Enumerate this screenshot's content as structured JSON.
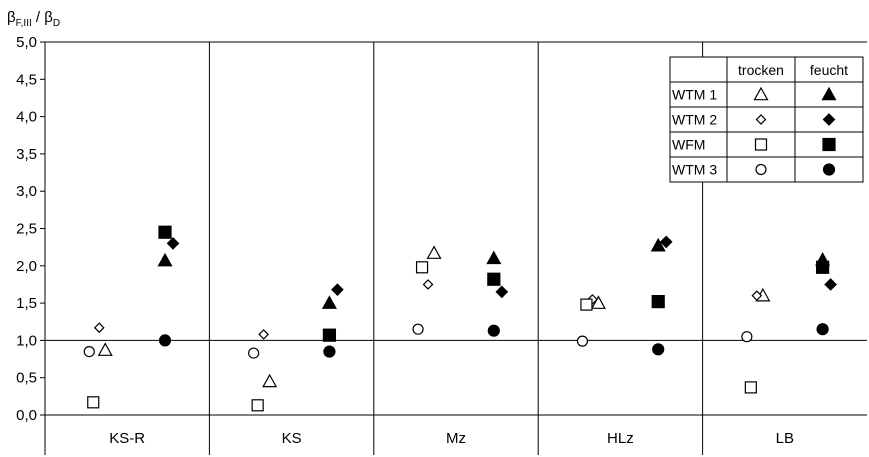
{
  "chart_data": {
    "type": "scatter",
    "ylabel": "βF,III / βD",
    "ylabel_main": "β",
    "ylabel_sub1": "F,III",
    "ylabel_sep": " / β",
    "ylabel_sub2": "D",
    "ylim": [
      0,
      5
    ],
    "yticks": [
      0,
      0.5,
      1,
      1.5,
      2,
      2.5,
      3,
      3.5,
      4,
      4.5,
      5
    ],
    "ytick_labels": [
      "0,0",
      "0,5",
      "1,0",
      "1,5",
      "2,0",
      "2,5",
      "3,0",
      "3,5",
      "4,0",
      "4,5",
      "5,0"
    ],
    "reference_line": 1.0,
    "categories": [
      "KS-R",
      "KS",
      "Mz",
      "HLz",
      "LB"
    ],
    "conditions": [
      "trocken",
      "feucht"
    ],
    "series": [
      {
        "name": "WTM 1",
        "marker": "triangle",
        "trocken": [
          0.87,
          0.45,
          2.17,
          1.5,
          1.6
        ],
        "feucht": [
          2.07,
          1.5,
          2.1,
          2.27,
          2.08
        ]
      },
      {
        "name": "WTM 2",
        "marker": "diamond",
        "trocken": [
          1.17,
          1.08,
          1.75,
          1.55,
          1.6
        ],
        "feucht": [
          2.3,
          1.68,
          1.65,
          2.32,
          1.75
        ]
      },
      {
        "name": "WFM",
        "marker": "square",
        "trocken": [
          0.17,
          0.13,
          1.98,
          1.48,
          0.37
        ],
        "feucht": [
          2.45,
          1.07,
          1.82,
          1.52,
          1.98
        ]
      },
      {
        "name": "WTM 3",
        "marker": "circle",
        "trocken": [
          0.85,
          0.83,
          1.15,
          0.99,
          1.05
        ],
        "feucht": [
          1.0,
          0.85,
          1.13,
          0.88,
          1.15
        ]
      }
    ],
    "legend": {
      "position": "top-right",
      "headers": [
        "trocken",
        "feucht"
      ],
      "rows": [
        "WTM 1",
        "WTM 2",
        "WFM",
        "WTM 3"
      ]
    },
    "grid": false
  }
}
